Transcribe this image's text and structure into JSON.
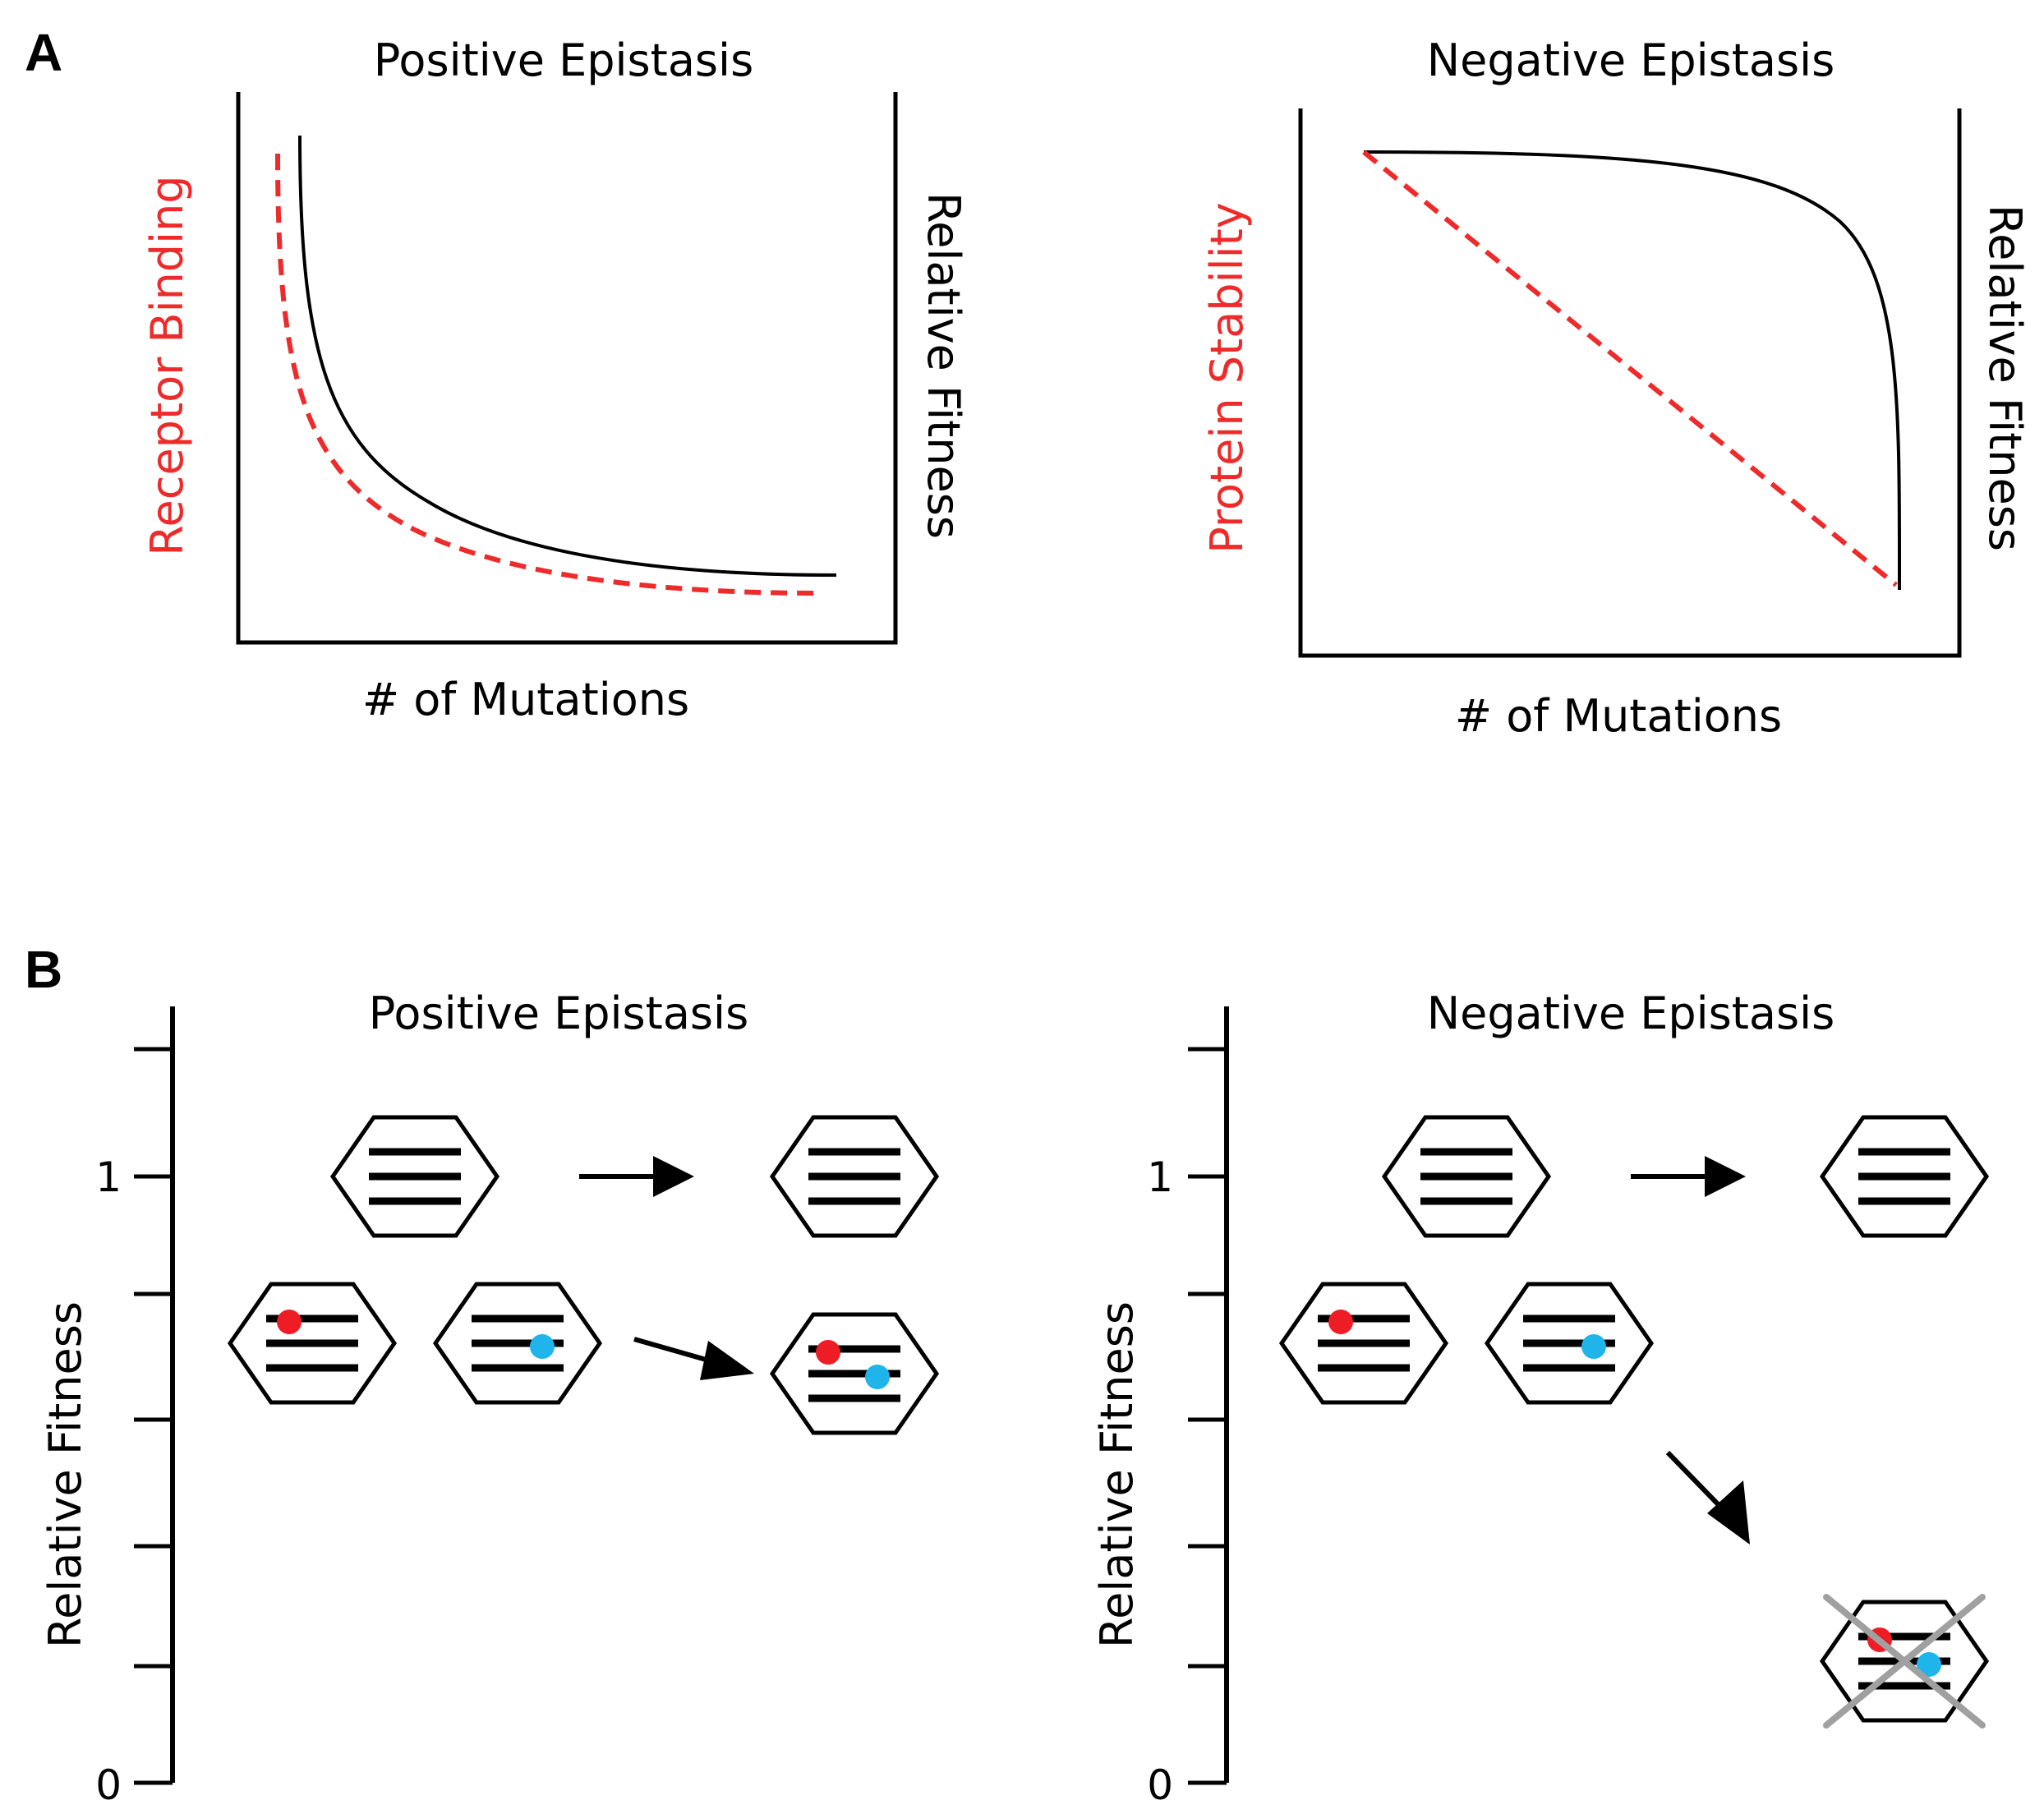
{
  "panels": {
    "a": {
      "letter": "A",
      "left": {
        "title": "Positive Epistasis",
        "x_label": "# of Mutations",
        "left_y_label": "Receptor Binding",
        "right_y_label": "Relative Fitness"
      },
      "right": {
        "title": "Negative Epistasis",
        "x_label": "# of Mutations",
        "left_y_label": "Protein Stability",
        "right_y_label": "Relative Fitness"
      }
    },
    "b": {
      "letter": "B",
      "left": {
        "title": "Positive Epistasis",
        "y_label": "Relative Fitness",
        "tick_top": "1",
        "tick_bottom": "0"
      },
      "right": {
        "title": "Negative Epistasis",
        "y_label": "Relative Fitness",
        "tick_top": "1",
        "tick_bottom": "0"
      }
    }
  },
  "colors": {
    "red_curve": "#ee2a2a",
    "mutation_red": "#ee1c24",
    "mutation_blue": "#1fb5ea",
    "cross_gray": "#a0a0a0"
  }
}
